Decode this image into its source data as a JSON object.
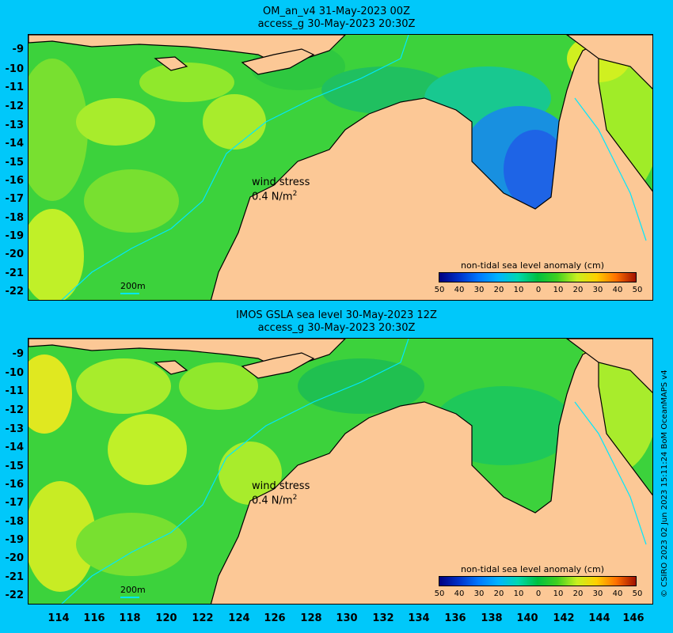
{
  "top_panel": {
    "title_line1": "OM_an_v4  31-May-2023 00Z",
    "title_line2": "access_g 30-May-2023 20:30Z",
    "wind_label": "wind stress",
    "wind_value": "0.4 N/m",
    "wind_exp": "2",
    "scale_label": "200m",
    "colorbar_title": "non-tidal sea level anomaly (cm)"
  },
  "bottom_panel": {
    "title_line1": "IMOS GSLA sea level  30-May-2023 12Z",
    "title_line2": "access_g 30-May-2023 20:30Z",
    "wind_label": "wind stress",
    "wind_value": "0.4 N/m",
    "wind_exp": "2",
    "scale_label": "200m",
    "colorbar_title": "non-tidal sea level anomaly (cm)"
  },
  "y_ticks": [
    "-9",
    "-10",
    "-11",
    "-12",
    "-13",
    "-14",
    "-15",
    "-16",
    "-17",
    "-18",
    "-19",
    "-20",
    "-21",
    "-22"
  ],
  "x_ticks": [
    "114",
    "116",
    "118",
    "120",
    "122",
    "124",
    "126",
    "128",
    "130",
    "132",
    "134",
    "136",
    "138",
    "140",
    "142",
    "144",
    "146"
  ],
  "colorbar_ticks": [
    "50",
    "40",
    "30",
    "20",
    "10",
    "0",
    "10",
    "20",
    "30",
    "40",
    "50"
  ],
  "credit": "© CSIRO 2023   02 Jun 2023 15:11:24 BoM OceanMAPS v4",
  "colors": {
    "background": "#00c8fa",
    "land": "#fcc896",
    "ocean_base": "#3cd23c",
    "positive_anomaly": "#a8f028",
    "negative_anomaly": "#1e64e6"
  }
}
